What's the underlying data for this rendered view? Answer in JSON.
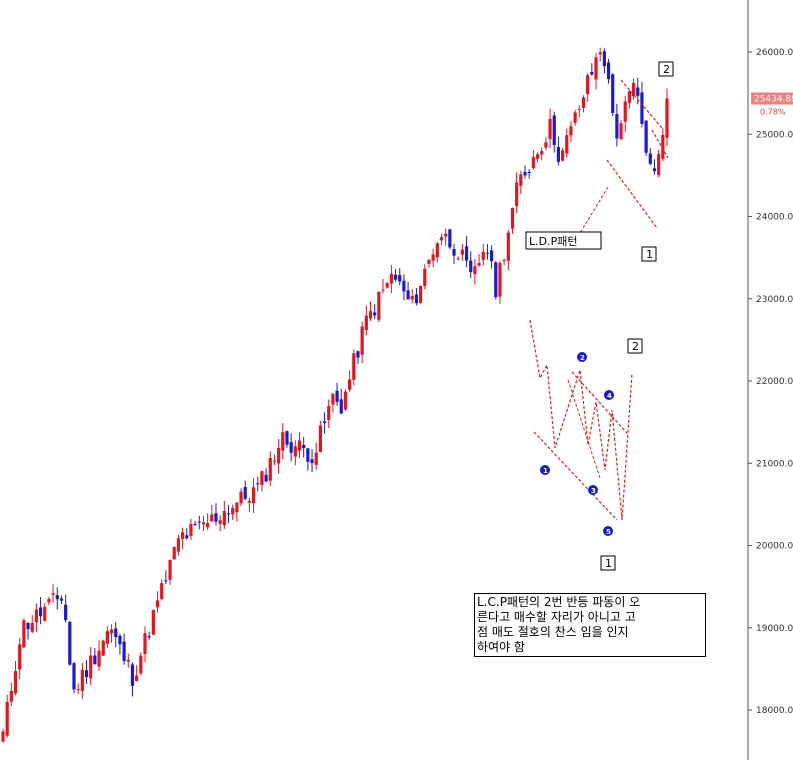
{
  "chart_data": {
    "type": "candlestick",
    "y_ticks": [
      {
        "label": "26000.00",
        "value": 26000
      },
      {
        "label": "25000.00",
        "value": 25000
      },
      {
        "label": "24000.00",
        "value": 24000
      },
      {
        "label": "23000.00",
        "value": 23000
      },
      {
        "label": "22000.00",
        "value": 22000
      },
      {
        "label": "21000.00",
        "value": 21000
      },
      {
        "label": "20000.00",
        "value": 20000
      },
      {
        "label": "19000.00",
        "value": 19000
      },
      {
        "label": "18000.00",
        "value": 18000
      }
    ],
    "ylim": [
      17500,
      26700
    ],
    "grid": false,
    "colors": {
      "up": "#e8141c",
      "down": "#1a1ad0",
      "annotation": "#e02020",
      "price_tag": "#f08080"
    },
    "last_price_label": "25434.89",
    "last_price": 25434.89,
    "change_pct_label": "0.78%",
    "candles": [],
    "annotations": {
      "ldp_label": "L.D.P패턴",
      "box_1_top": "1",
      "box_2_top": "2",
      "box_1_bottom": "1",
      "box_2_bottom": "2",
      "wave_labels": [
        "1",
        "2",
        "3",
        "4",
        "5"
      ]
    }
  },
  "note": {
    "lines": [
      "L.C.P패턴의 2번 반등 파동이 오",
      "른다고 매수할 자리가 아니고 고",
      "점 매도 절호의 찬스 임을 인지",
      "하여야 함"
    ]
  }
}
